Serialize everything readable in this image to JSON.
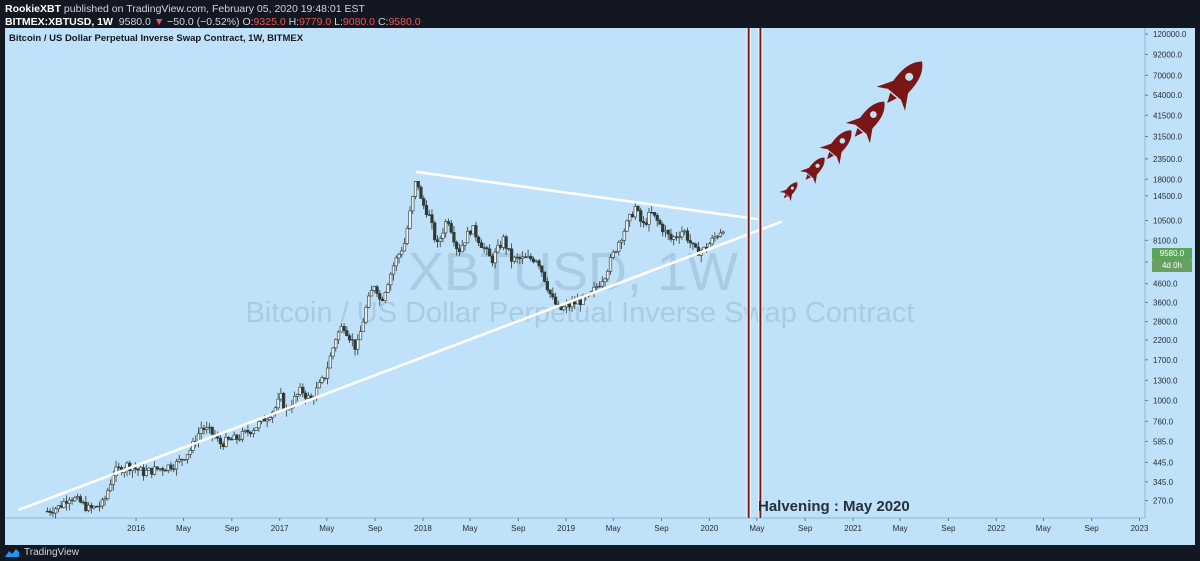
{
  "header": {
    "author": "RookieXBT",
    "published": " published on TradingView.com, February 05, 2020 19:48:01 EST",
    "symbol": "BITMEX:XBTUSD, 1W",
    "last": "9580.0",
    "arrow": "▼",
    "change": "−50.0 (−0.52%)",
    "o_label": "O:",
    "o": "9325.0",
    "h_label": "H:",
    "h": "9779.0",
    "l_label": "L:",
    "l": "9080.0",
    "c_label": "C:",
    "c": "9580.0"
  },
  "chart_title": "Bitcoin / US Dollar Perpetual Inverse Swap Contract, 1W, BITMEX",
  "watermark": {
    "symbol": "XBTUSD, 1W",
    "name": "Bitcoin / US Dollar Perpetual Inverse Swap Contract"
  },
  "annotation": "Halvening : May 2020",
  "price_badge": "9580.0",
  "time_badge": "4d 0h",
  "footer": {
    "brand": "TradingView"
  },
  "colors": {
    "background": "#bfe1f9",
    "up": "#2f3a36",
    "down": "#2f3a36",
    "trendline": "#ffffff",
    "halving_line": "#7b1616",
    "rocket": "#7b1616",
    "price_badge": "#5aa55a"
  },
  "icons": [
    "rocket-icon",
    "tradingview-logo-icon"
  ],
  "chart_data": {
    "type": "candlestick",
    "title": "Bitcoin / US Dollar Perpetual Inverse Swap Contract, 1W, BITMEX",
    "y_scale": "log",
    "y_ticks": [
      120000,
      92000,
      70000,
      54000,
      41500,
      31500,
      23500,
      18000,
      14500,
      10500,
      8100,
      6100,
      4600,
      3600,
      2800,
      2200,
      1700,
      1300,
      1000,
      760,
      585,
      445,
      345,
      270
    ],
    "y_tick_labels": [
      "120000.0",
      "92000.0",
      "70000.0",
      "54000.0",
      "41500.0",
      "31500.0",
      "23500.0",
      "18000.0",
      "14500.0",
      "10500.0",
      "8100.0",
      "6100.0",
      "4600.0",
      "3600.0",
      "2800.0",
      "2200.0",
      "1700.0",
      "1300.0",
      "1000.0",
      "760.0",
      "585.0",
      "445.0",
      "345.0",
      "270.0"
    ],
    "x_ticks": [
      {
        "label": "2016",
        "date": "2016-01-01"
      },
      {
        "label": "May",
        "date": "2016-05-01"
      },
      {
        "label": "Sep",
        "date": "2016-09-01"
      },
      {
        "label": "2017",
        "date": "2017-01-01"
      },
      {
        "label": "May",
        "date": "2017-05-01"
      },
      {
        "label": "Sep",
        "date": "2017-09-01"
      },
      {
        "label": "2018",
        "date": "2018-01-01"
      },
      {
        "label": "May",
        "date": "2018-05-01"
      },
      {
        "label": "Sep",
        "date": "2018-09-01"
      },
      {
        "label": "2019",
        "date": "2019-01-01"
      },
      {
        "label": "May",
        "date": "2019-05-01"
      },
      {
        "label": "Sep",
        "date": "2019-09-01"
      },
      {
        "label": "2020",
        "date": "2020-01-01"
      },
      {
        "label": "May",
        "date": "2020-05-01"
      },
      {
        "label": "Sep",
        "date": "2020-09-01"
      },
      {
        "label": "2021",
        "date": "2021-01-01"
      },
      {
        "label": "May",
        "date": "2021-05-01"
      },
      {
        "label": "Sep",
        "date": "2021-09-01"
      },
      {
        "label": "2022",
        "date": "2022-01-01"
      },
      {
        "label": "May",
        "date": "2022-05-01"
      },
      {
        "label": "Sep",
        "date": "2022-09-01"
      },
      {
        "label": "2023",
        "date": "2023-01-01"
      }
    ],
    "x_range": [
      "2015-02-01",
      "2023-01-15"
    ],
    "y_range": [
      215,
      130000
    ],
    "last_price": 9580,
    "close_anchors": [
      [
        "2015-05-20",
        235
      ],
      [
        "2015-06-20",
        250
      ],
      [
        "2015-07-15",
        285
      ],
      [
        "2015-08-10",
        265
      ],
      [
        "2015-09-05",
        240
      ],
      [
        "2015-10-10",
        260
      ],
      [
        "2015-11-05",
        390
      ],
      [
        "2015-12-10",
        430
      ],
      [
        "2016-01-20",
        390
      ],
      [
        "2016-03-10",
        415
      ],
      [
        "2016-04-15",
        440
      ],
      [
        "2016-05-20",
        530
      ],
      [
        "2016-06-15",
        700
      ],
      [
        "2016-07-10",
        660
      ],
      [
        "2016-08-02",
        570
      ],
      [
        "2016-09-15",
        610
      ],
      [
        "2016-11-01",
        710
      ],
      [
        "2016-12-20",
        900
      ],
      [
        "2017-01-05",
        1050
      ],
      [
        "2017-01-15",
        860
      ],
      [
        "2017-02-25",
        1150
      ],
      [
        "2017-03-20",
        1000
      ],
      [
        "2017-04-25",
        1350
      ],
      [
        "2017-05-25",
        2300
      ],
      [
        "2017-06-12",
        2700
      ],
      [
        "2017-07-16",
        1950
      ],
      [
        "2017-08-10",
        3400
      ],
      [
        "2017-09-01",
        4700
      ],
      [
        "2017-09-15",
        3600
      ],
      [
        "2017-10-20",
        6000
      ],
      [
        "2017-11-15",
        7800
      ],
      [
        "2017-12-17",
        19000
      ],
      [
        "2017-12-24",
        14000
      ],
      [
        "2018-01-15",
        11500
      ],
      [
        "2018-02-06",
        7500
      ],
      [
        "2018-03-05",
        11000
      ],
      [
        "2018-04-01",
        7000
      ],
      [
        "2018-05-05",
        9600
      ],
      [
        "2018-06-25",
        6200
      ],
      [
        "2018-07-25",
        8200
      ],
      [
        "2018-08-15",
        6300
      ],
      [
        "2018-10-20",
        6400
      ],
      [
        "2018-11-25",
        3800
      ],
      [
        "2018-12-15",
        3250
      ],
      [
        "2019-01-20",
        3550
      ],
      [
        "2019-03-01",
        3850
      ],
      [
        "2019-04-10",
        5200
      ],
      [
        "2019-05-15",
        8000
      ],
      [
        "2019-06-26",
        12500
      ],
      [
        "2019-07-15",
        9700
      ],
      [
        "2019-08-05",
        11600
      ],
      [
        "2019-09-25",
        8200
      ],
      [
        "2019-10-27",
        9300
      ],
      [
        "2019-11-25",
        7000
      ],
      [
        "2019-12-20",
        7200
      ],
      [
        "2020-01-20",
        8700
      ],
      [
        "2020-02-05",
        9580
      ]
    ],
    "trendlines": [
      {
        "from": [
          "2017-12-17",
          19800
        ],
        "to": [
          "2020-05-01",
          10700
        ],
        "color": "#ffffff"
      },
      {
        "from": [
          "2015-03-10",
          240
        ],
        "to": [
          "2020-07-01",
          10300
        ],
        "color": "#ffffff"
      }
    ],
    "vertical_lines": [
      {
        "date": "2020-04-10",
        "color": "#7b1616"
      },
      {
        "date": "2020-05-10",
        "color": "#7b1616"
      }
    ],
    "rockets": [
      {
        "date": "2020-07-25",
        "value": 15500
      },
      {
        "date": "2020-09-25",
        "value": 20500
      },
      {
        "date": "2020-11-25",
        "value": 28000
      },
      {
        "date": "2021-02-10",
        "value": 39000
      },
      {
        "date": "2021-05-10",
        "value": 63000
      }
    ]
  }
}
